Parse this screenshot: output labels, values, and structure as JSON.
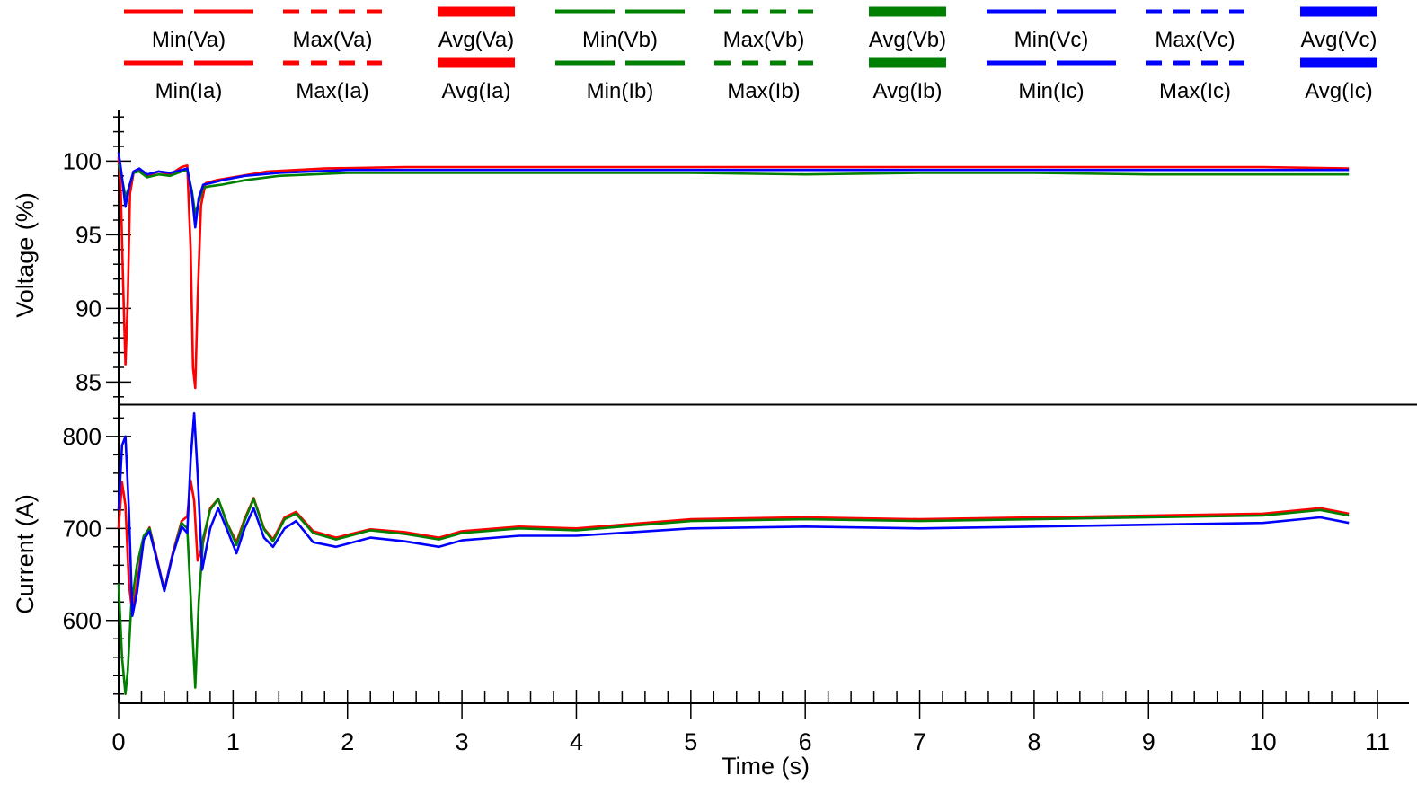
{
  "chart_data": [
    {
      "type": "line",
      "ylabel": "Voltage (%)",
      "ylim": [
        83.5,
        103.5
      ],
      "yticks": [
        85,
        90,
        95,
        100
      ],
      "xlim": [
        0,
        11
      ],
      "series": [
        {
          "name": "Va",
          "color": "#ff0000",
          "x": [
            0,
            0.02,
            0.04,
            0.06,
            0.08,
            0.1,
            0.13,
            0.18,
            0.25,
            0.35,
            0.45,
            0.55,
            0.6,
            0.63,
            0.65,
            0.67,
            0.69,
            0.72,
            0.76,
            0.85,
            1.0,
            1.3,
            1.8,
            2.5,
            3.5,
            5,
            6,
            7,
            8,
            9,
            10,
            10.75
          ],
          "y": [
            100.3,
            97.8,
            91.5,
            86.2,
            90.5,
            97.8,
            99.2,
            99.4,
            99.0,
            99.3,
            99.1,
            99.6,
            99.7,
            94.0,
            86.0,
            84.6,
            90.5,
            97.0,
            98.5,
            98.7,
            98.9,
            99.3,
            99.5,
            99.6,
            99.6,
            99.6,
            99.6,
            99.6,
            99.6,
            99.6,
            99.6,
            99.5
          ]
        },
        {
          "name": "Vb",
          "color": "#008000",
          "x": [
            0,
            0.03,
            0.06,
            0.09,
            0.13,
            0.18,
            0.25,
            0.35,
            0.45,
            0.55,
            0.6,
            0.64,
            0.67,
            0.7,
            0.74,
            0.8,
            0.9,
            1.1,
            1.4,
            2.0,
            3.0,
            4.0,
            5.0,
            6.0,
            7.0,
            8.0,
            9.0,
            10.0,
            10.75
          ],
          "y": [
            99.8,
            98.8,
            97.6,
            98.2,
            99.2,
            99.3,
            98.9,
            99.1,
            99.0,
            99.3,
            99.4,
            98.0,
            96.4,
            97.2,
            98.2,
            98.3,
            98.4,
            98.7,
            99.0,
            99.2,
            99.2,
            99.2,
            99.2,
            99.1,
            99.2,
            99.2,
            99.1,
            99.1,
            99.1
          ]
        },
        {
          "name": "Vc",
          "color": "#0000ff",
          "x": [
            0,
            0.03,
            0.06,
            0.09,
            0.13,
            0.18,
            0.25,
            0.35,
            0.45,
            0.55,
            0.6,
            0.64,
            0.67,
            0.7,
            0.74,
            0.8,
            0.9,
            1.1,
            1.4,
            2.0,
            3.0,
            4.0,
            5.0,
            6.0,
            7.0,
            8.0,
            9.0,
            10.0,
            10.75
          ],
          "y": [
            100.6,
            98.9,
            96.9,
            98.2,
            99.3,
            99.5,
            99.1,
            99.3,
            99.2,
            99.4,
            99.5,
            97.8,
            95.5,
            97.5,
            98.4,
            98.5,
            98.7,
            99.0,
            99.2,
            99.4,
            99.4,
            99.4,
            99.4,
            99.4,
            99.4,
            99.4,
            99.4,
            99.4,
            99.4
          ]
        }
      ]
    },
    {
      "type": "line",
      "ylabel": "Current (A)",
      "ylim": [
        510,
        835
      ],
      "yticks": [
        600,
        700,
        800
      ],
      "xlabel": "Time (s)",
      "xlim": [
        0,
        11
      ],
      "xticks": [
        0,
        1,
        2,
        3,
        4,
        5,
        6,
        7,
        8,
        9,
        10,
        11
      ],
      "series": [
        {
          "name": "Ia",
          "color": "#ff0000",
          "x": [
            0,
            0.03,
            0.06,
            0.09,
            0.12,
            0.16,
            0.22,
            0.27,
            0.33,
            0.4,
            0.47,
            0.55,
            0.6,
            0.63,
            0.66,
            0.69,
            0.73,
            0.8,
            0.87,
            0.95,
            1.03,
            1.1,
            1.18,
            1.27,
            1.35,
            1.45,
            1.55,
            1.7,
            1.9,
            2.2,
            2.5,
            2.8,
            3.0,
            3.5,
            4.0,
            4.5,
            5.0,
            6.0,
            7.0,
            8.0,
            9.0,
            10.0,
            10.5,
            10.75
          ],
          "y": [
            700,
            750,
            725,
            640,
            608,
            640,
            690,
            701,
            670,
            633,
            672,
            708,
            713,
            752,
            730,
            665,
            680,
            722,
            732,
            705,
            685,
            710,
            733,
            700,
            688,
            712,
            718,
            697,
            690,
            699,
            696,
            690,
            697,
            702,
            700,
            705,
            710,
            712,
            710,
            712,
            714,
            716,
            722,
            716
          ]
        },
        {
          "name": "Ib",
          "color": "#008000",
          "x": [
            0,
            0.03,
            0.06,
            0.08,
            0.11,
            0.16,
            0.22,
            0.27,
            0.33,
            0.4,
            0.47,
            0.55,
            0.6,
            0.64,
            0.67,
            0.7,
            0.74,
            0.8,
            0.87,
            0.95,
            1.03,
            1.1,
            1.18,
            1.27,
            1.35,
            1.45,
            1.55,
            1.7,
            1.9,
            2.2,
            2.5,
            2.8,
            3.0,
            3.5,
            4.0,
            4.5,
            5.0,
            6.0,
            7.0,
            8.0,
            9.0,
            10.0,
            10.5,
            10.75
          ],
          "y": [
            640,
            560,
            520,
            545,
            615,
            660,
            692,
            700,
            668,
            632,
            670,
            706,
            700,
            600,
            527,
            620,
            690,
            720,
            732,
            705,
            682,
            708,
            732,
            699,
            686,
            710,
            716,
            695,
            688,
            698,
            694,
            688,
            695,
            700,
            698,
            703,
            708,
            710,
            708,
            710,
            712,
            714,
            720,
            714
          ]
        },
        {
          "name": "Ic",
          "color": "#0000ff",
          "x": [
            0,
            0.03,
            0.06,
            0.09,
            0.12,
            0.16,
            0.22,
            0.27,
            0.33,
            0.4,
            0.47,
            0.55,
            0.6,
            0.63,
            0.66,
            0.69,
            0.73,
            0.8,
            0.87,
            0.95,
            1.03,
            1.1,
            1.18,
            1.27,
            1.35,
            1.45,
            1.55,
            1.7,
            1.9,
            2.2,
            2.5,
            2.8,
            3.0,
            3.5,
            4.0,
            4.5,
            5.0,
            6.0,
            7.0,
            8.0,
            9.0,
            10.0,
            10.5,
            10.75
          ],
          "y": [
            720,
            790,
            800,
            720,
            605,
            630,
            688,
            697,
            668,
            632,
            670,
            702,
            695,
            775,
            825,
            760,
            655,
            700,
            722,
            698,
            673,
            700,
            722,
            690,
            680,
            700,
            708,
            685,
            680,
            690,
            686,
            680,
            687,
            692,
            692,
            696,
            700,
            702,
            700,
            702,
            704,
            706,
            712,
            706
          ]
        }
      ]
    }
  ],
  "legend": {
    "rows": [
      [
        {
          "label": "Min(Va)",
          "color": "#ff0000",
          "style": "long-dash"
        },
        {
          "label": "Max(Va)",
          "color": "#ff0000",
          "style": "short-dash"
        },
        {
          "label": "Avg(Va)",
          "color": "#ff0000",
          "style": "solid-thick"
        },
        {
          "label": "Min(Vb)",
          "color": "#008000",
          "style": "long-dash"
        },
        {
          "label": "Max(Vb)",
          "color": "#008000",
          "style": "short-dash"
        },
        {
          "label": "Avg(Vb)",
          "color": "#008000",
          "style": "solid-thick"
        },
        {
          "label": "Min(Vc)",
          "color": "#0000ff",
          "style": "long-dash"
        },
        {
          "label": "Max(Vc)",
          "color": "#0000ff",
          "style": "short-dash"
        },
        {
          "label": "Avg(Vc)",
          "color": "#0000ff",
          "style": "solid-thick"
        }
      ],
      [
        {
          "label": "Min(Ia)",
          "color": "#ff0000",
          "style": "long-dash"
        },
        {
          "label": "Max(Ia)",
          "color": "#ff0000",
          "style": "short-dash"
        },
        {
          "label": "Avg(Ia)",
          "color": "#ff0000",
          "style": "solid-thick"
        },
        {
          "label": "Min(Ib)",
          "color": "#008000",
          "style": "long-dash"
        },
        {
          "label": "Max(Ib)",
          "color": "#008000",
          "style": "short-dash"
        },
        {
          "label": "Avg(Ib)",
          "color": "#008000",
          "style": "solid-thick"
        },
        {
          "label": "Min(Ic)",
          "color": "#0000ff",
          "style": "long-dash"
        },
        {
          "label": "Max(Ic)",
          "color": "#0000ff",
          "style": "short-dash"
        },
        {
          "label": "Avg(Ic)",
          "color": "#0000ff",
          "style": "solid-thick"
        }
      ]
    ]
  }
}
